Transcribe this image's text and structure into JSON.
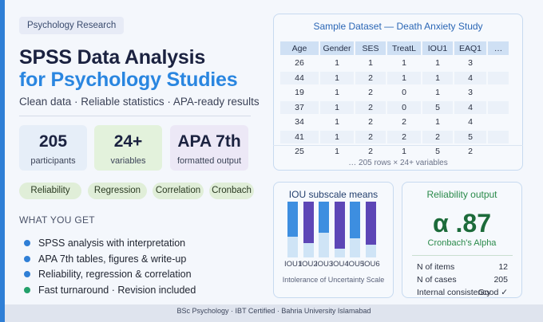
{
  "tag": "Psychology Research",
  "title_line1": "SPSS Data Analysis",
  "title_line2": "for Psychology Studies",
  "subtitle": "Clean data · Reliable statistics · APA-ready results",
  "stats": [
    {
      "value": "205",
      "label": "participants"
    },
    {
      "value": "24+",
      "label": "variables"
    },
    {
      "value": "APA 7th",
      "label": "formatted output"
    }
  ],
  "chips": [
    "Reliability",
    "Regression",
    "Correlation",
    "Cronbach"
  ],
  "what_you_get": {
    "heading": "WHAT YOU GET",
    "items": [
      {
        "text": "SPSS analysis with interpretation",
        "color": "#2f7fd6"
      },
      {
        "text": "APA 7th tables, figures & write-up",
        "color": "#2f7fd6"
      },
      {
        "text": "Reliability, regression & correlation",
        "color": "#2f7fd6"
      },
      {
        "text": "Fast turnaround · Revision included",
        "color": "#23a06a"
      }
    ]
  },
  "dataset": {
    "title": "Sample Dataset — Death Anxiety Study",
    "columns": [
      "Age",
      "Gender",
      "SES",
      "TreatL",
      "IOU1",
      "EAQ1",
      "…"
    ],
    "rows": [
      [
        "26",
        "1",
        "1",
        "1",
        "1",
        "3",
        ""
      ],
      [
        "44",
        "1",
        "2",
        "1",
        "1",
        "4",
        ""
      ],
      [
        "19",
        "1",
        "2",
        "0",
        "1",
        "3",
        ""
      ],
      [
        "37",
        "1",
        "2",
        "0",
        "5",
        "4",
        ""
      ],
      [
        "34",
        "1",
        "2",
        "2",
        "1",
        "4",
        ""
      ],
      [
        "41",
        "1",
        "2",
        "2",
        "2",
        "5",
        ""
      ],
      [
        "25",
        "1",
        "2",
        "1",
        "5",
        "2",
        ""
      ]
    ],
    "footer": "… 205 rows × 24+ variables"
  },
  "iou_chart": {
    "title": "IOU subscale means",
    "caption": "Intolerance of Uncertainty Scale",
    "colors": {
      "light": "#cfe4f6",
      "blue": "#3d8ee0",
      "purple": "#5d46b6"
    },
    "chart_data": {
      "type": "bar",
      "categories": [
        "IOU1",
        "IOU2",
        "IOU3",
        "IOU4",
        "IOU5",
        "IOU6"
      ],
      "values": [
        0.63,
        0.74,
        0.56,
        0.84,
        0.66,
        0.77
      ],
      "title": "IOU subscale means",
      "xlabel": "Intolerance of Uncertainty Scale",
      "ylabel": "",
      "ylim": [
        0,
        1
      ]
    }
  },
  "reliability": {
    "title": "Reliability output",
    "alpha": "α .87",
    "alpha_label": "Cronbach's Alpha",
    "rows": [
      {
        "key": "N of items",
        "value": "12"
      },
      {
        "key": "N of cases",
        "value": "205"
      },
      {
        "key": "Internal consistency",
        "value": "Good ✓"
      }
    ]
  },
  "footer": "BSc Psychology · IBT Certified · Bahria University Islamabad"
}
